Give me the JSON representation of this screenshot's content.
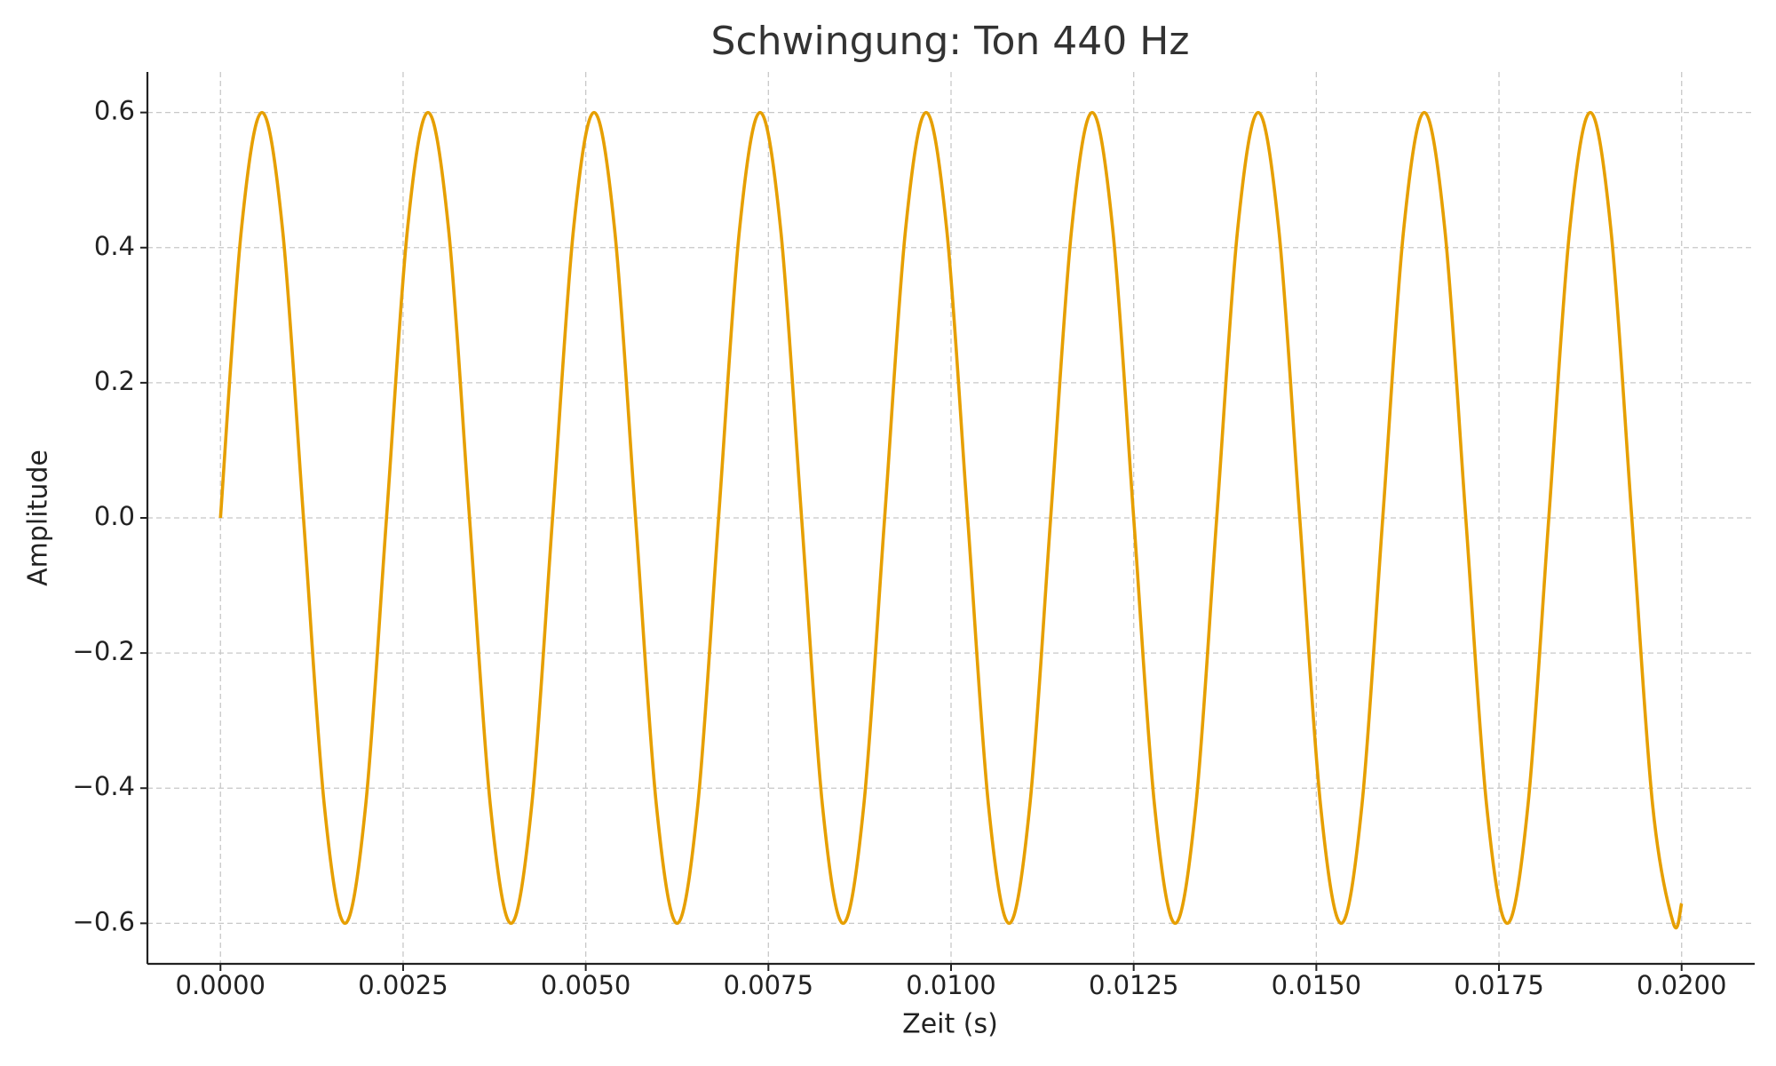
{
  "chart_data": {
    "type": "line",
    "title": "Schwingung: Ton 440 Hz",
    "x_label": "Zeit (s)",
    "y_label": "Amplitude",
    "x": [
      0,
      0.0002841,
      0.0005682,
      0.0008523,
      0.0011364,
      0.0014205,
      0.0017045,
      0.0019886,
      0.0022727,
      0.0025568,
      0.0028409,
      0.003125,
      0.0034091,
      0.0036932,
      0.0039773,
      0.0042614,
      0.0045455,
      0.0048295,
      0.0051136,
      0.0053977,
      0.0056818,
      0.0059659,
      0.00625,
      0.0065341,
      0.0068182,
      0.0071023,
      0.0073864,
      0.0076705,
      0.0079545,
      0.0082386,
      0.0085227,
      0.0088068,
      0.0090909,
      0.009375,
      0.0096591,
      0.0099432,
      0.0102273,
      0.0105114,
      0.0107955,
      0.0110795,
      0.0113636,
      0.0116477,
      0.0119318,
      0.0122159,
      0.0125,
      0.0127841,
      0.0130682,
      0.0133523,
      0.0136364,
      0.0139205,
      0.0142045,
      0.0144886,
      0.0147727,
      0.0150568,
      0.0153409,
      0.015625,
      0.0159091,
      0.0161932,
      0.0164773,
      0.0167614,
      0.0170455,
      0.0173295,
      0.0176136,
      0.0178977,
      0.0181818,
      0.0184659,
      0.01875,
      0.0190341,
      0.0193182,
      0.0196023,
      0.0198864,
      0.02
    ],
    "series": [
      {
        "color": "#e69f00",
        "values": [
          0,
          0.4243,
          0.6,
          0.4243,
          0,
          -0.4243,
          -0.6,
          -0.4243,
          0,
          0.4243,
          0.6,
          0.4243,
          0,
          -0.4243,
          -0.6,
          -0.4243,
          0,
          0.4243,
          0.6,
          0.4243,
          0,
          -0.4243,
          -0.6,
          -0.4243,
          0,
          0.4243,
          0.6,
          0.4243,
          0,
          -0.4243,
          -0.6,
          -0.4243,
          0,
          0.4243,
          0.6,
          0.4243,
          0,
          -0.4243,
          -0.6,
          -0.4243,
          0,
          0.4243,
          0.6,
          0.4243,
          0,
          -0.4243,
          -0.6,
          -0.4243,
          0,
          0.4243,
          0.6,
          0.4243,
          0,
          -0.4243,
          -0.6,
          -0.4243,
          0,
          0.4243,
          0.6,
          0.4243,
          0,
          -0.4243,
          -0.6,
          -0.4243,
          0,
          0.4243,
          0.6,
          0.4243,
          0,
          -0.4243,
          -0.6,
          -0.5706
        ]
      }
    ],
    "xlim": [
      -0.001,
      0.021
    ],
    "ylim": [
      -0.66,
      0.66
    ],
    "xticks": [
      {
        "value": 0,
        "label": "0.0000"
      },
      {
        "value": 0.0025,
        "label": "0.0025"
      },
      {
        "value": 0.005,
        "label": "0.0050"
      },
      {
        "value": 0.0075,
        "label": "0.0075"
      },
      {
        "value": 0.01,
        "label": "0.0100"
      },
      {
        "value": 0.0125,
        "label": "0.0125"
      },
      {
        "value": 0.015,
        "label": "0.0150"
      },
      {
        "value": 0.0175,
        "label": "0.0175"
      },
      {
        "value": 0.02,
        "label": "0.0200"
      }
    ],
    "yticks": [
      {
        "value": -0.6,
        "label": "−0.6"
      },
      {
        "value": -0.4,
        "label": "−0.4"
      },
      {
        "value": -0.2,
        "label": "−0.2"
      },
      {
        "value": 0,
        "label": "0.0"
      },
      0.2,
      0.4,
      0.6
    ],
    "grid": true
  }
}
